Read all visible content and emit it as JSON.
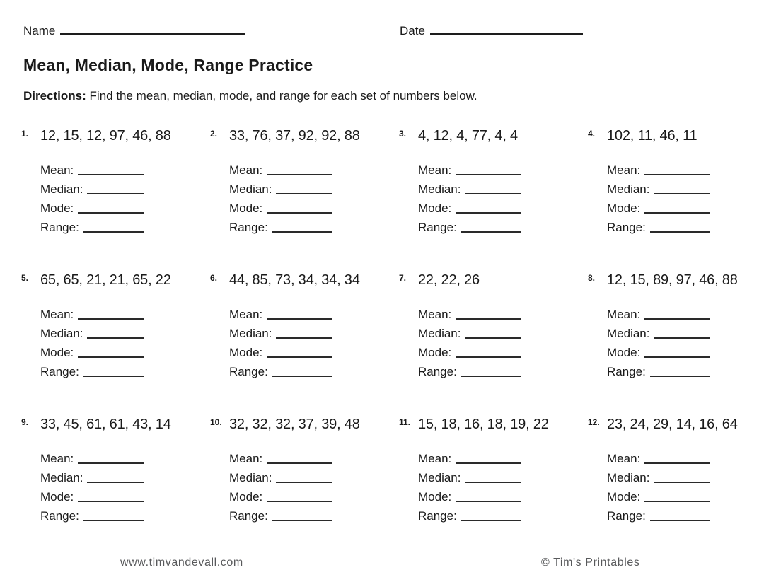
{
  "header": {
    "name_label": "Name",
    "date_label": "Date"
  },
  "title": "Mean, Median, Mode, Range Practice",
  "directions": {
    "label": "Directions:",
    "text": "Find the mean, median, mode, and range for each set of numbers below."
  },
  "answer_labels": {
    "mean": "Mean:",
    "median": "Median:",
    "mode": "Mode:",
    "range": "Range:"
  },
  "problems": [
    {
      "number": "1.",
      "set": "12, 15, 12, 97, 46, 88"
    },
    {
      "number": "2.",
      "set": "33, 76, 37, 92, 92, 88"
    },
    {
      "number": "3.",
      "set": "4, 12, 4, 77, 4, 4"
    },
    {
      "number": "4.",
      "set": "102, 11, 46, 11"
    },
    {
      "number": "5.",
      "set": "65, 65, 21, 21, 65, 22"
    },
    {
      "number": "6.",
      "set": "44, 85, 73, 34, 34, 34"
    },
    {
      "number": "7.",
      "set": "22, 22, 26"
    },
    {
      "number": "8.",
      "set": "12, 15, 89, 97, 46, 88"
    },
    {
      "number": "9.",
      "set": "33, 45, 61, 61, 43, 14"
    },
    {
      "number": "10.",
      "set": "32, 32, 32, 37, 39, 48"
    },
    {
      "number": "11.",
      "set": "15, 18, 16, 18, 19, 22"
    },
    {
      "number": "12.",
      "set": "23, 24, 29, 14, 16, 64"
    }
  ],
  "footer": {
    "website": "www.timvandevall.com",
    "copyright": "© Tim's Printables"
  },
  "colors": {
    "text": "#1a1a1a",
    "line": "#2a2a2a",
    "footer_text": "#58595b"
  }
}
